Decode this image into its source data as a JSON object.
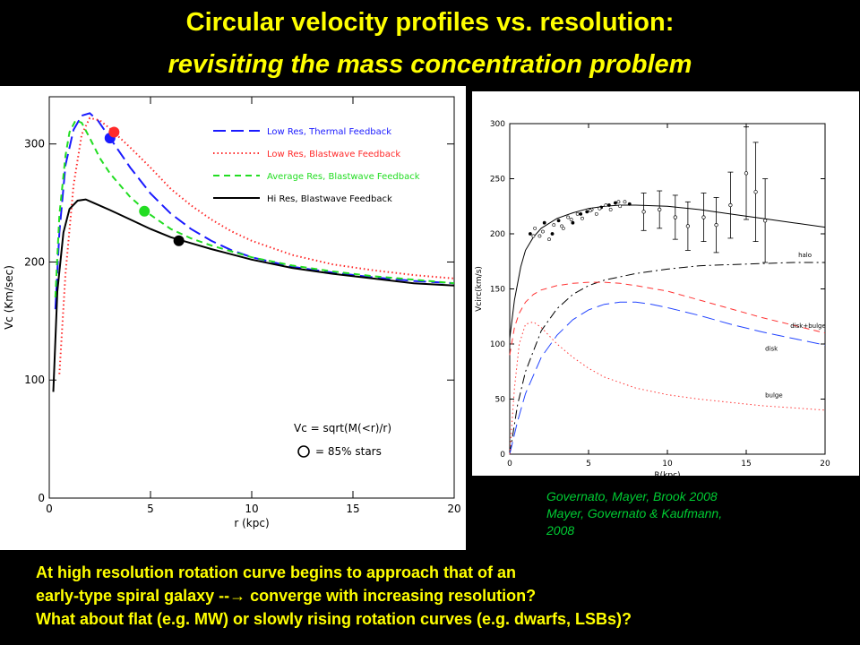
{
  "slide": {
    "title_line1": "Circular velocity profiles vs. resolution:",
    "title_line2": "revisiting the mass concentration problem",
    "citation": [
      "Governato, Mayer, Brook 2008",
      "Mayer, Governato & Kaufmann,",
      "2008"
    ],
    "bottom_lines": [
      "At high resolution rotation curve begins to approach  that of an",
      "early-type spiral galaxy --→ converge with increasing  resolution?",
      "What about flat (e.g. MW) or slowly rising rotation curves (e.g. dwarfs, LSBs)?"
    ]
  },
  "chart_data": [
    {
      "type": "line",
      "xlabel": "r (kpc)",
      "ylabel": "Vc (Km/sec)",
      "xlim": [
        0,
        20
      ],
      "ylim": [
        0,
        340
      ],
      "xticks": [
        0,
        5,
        10,
        15,
        20
      ],
      "yticks": [
        0,
        100,
        200,
        300
      ],
      "legend_position": "top-right",
      "annotation_lines": [
        "Vc = sqrt(M(<r)/r)",
        "= 85% stars"
      ],
      "series": [
        {
          "name": "Low Res, Thermal Feedback",
          "color": "#1a1aff",
          "dash": "long-dash",
          "x": [
            0.3,
            0.5,
            0.8,
            1.2,
            1.6,
            2.0,
            2.4,
            3,
            4,
            5,
            6,
            7,
            8,
            9,
            10,
            12,
            14,
            16,
            18,
            20
          ],
          "y": [
            160,
            225,
            282,
            312,
            324,
            326,
            320,
            305,
            280,
            258,
            241,
            228,
            218,
            210,
            204,
            196,
            191,
            187,
            184,
            182
          ],
          "marker": {
            "x": 3.0,
            "y": 305
          }
        },
        {
          "name": "Low Res, Blastwave Feedback",
          "color": "#ff2a2a",
          "dash": "dotted",
          "x": [
            0.5,
            0.8,
            1.2,
            1.6,
            2.0,
            2.5,
            3,
            4,
            5,
            6,
            7,
            8,
            9,
            10,
            12,
            14,
            16,
            18,
            20
          ],
          "y": [
            105,
            190,
            265,
            308,
            322,
            320,
            313,
            297,
            280,
            262,
            248,
            236,
            226,
            218,
            206,
            198,
            193,
            189,
            186
          ],
          "marker": {
            "x": 3.2,
            "y": 310
          }
        },
        {
          "name": "Average Res, Blastwave Feedback",
          "color": "#22dd22",
          "dash": "dashed",
          "x": [
            0.3,
            0.5,
            0.8,
            1.0,
            1.3,
            1.6,
            2.0,
            2.5,
            3,
            4,
            5,
            6,
            7,
            8,
            10,
            12,
            14,
            16,
            18,
            20
          ],
          "y": [
            170,
            240,
            290,
            310,
            320,
            318,
            305,
            288,
            275,
            255,
            240,
            228,
            220,
            214,
            204,
            197,
            192,
            188,
            185,
            182
          ],
          "marker": {
            "x": 4.7,
            "y": 243
          }
        },
        {
          "name": "Hi Res, Blastwave Feedback",
          "color": "#000000",
          "dash": "solid",
          "x": [
            0.2,
            0.4,
            0.7,
            1.0,
            1.4,
            1.8,
            2.2,
            3,
            4,
            5,
            6,
            7,
            8,
            10,
            12,
            14,
            16,
            18,
            20
          ],
          "y": [
            90,
            175,
            225,
            245,
            252,
            253,
            250,
            244,
            236,
            228,
            221,
            216,
            211,
            202,
            195,
            190,
            186,
            182,
            180
          ],
          "marker": {
            "x": 6.4,
            "y": 218
          }
        }
      ]
    },
    {
      "type": "line",
      "xlabel": "R(kpc)",
      "ylabel": "Vcirc(km/s)",
      "xlim": [
        0,
        20
      ],
      "ylim": [
        0,
        300
      ],
      "xticks": [
        0,
        5,
        10,
        15,
        20
      ],
      "yticks": [
        0,
        50,
        100,
        150,
        200,
        250,
        300
      ],
      "labels": [
        "halo",
        "disk+bulge",
        "disk",
        "bulge"
      ],
      "series": [
        {
          "name": "total",
          "color": "#000000",
          "dash": "solid",
          "x": [
            0,
            0.3,
            0.7,
            1,
            1.5,
            2,
            3,
            4,
            5,
            6,
            7,
            8,
            10,
            12,
            14,
            16,
            18,
            20
          ],
          "y": [
            105,
            140,
            170,
            185,
            197,
            205,
            214,
            219,
            223,
            225,
            226,
            226,
            225,
            222,
            218,
            214,
            210,
            206
          ]
        },
        {
          "name": "halo",
          "color": "#000000",
          "dash": "dashdot",
          "x": [
            0,
            0.5,
            1,
            2,
            3,
            4,
            5,
            6,
            8,
            10,
            12,
            14,
            16,
            18,
            20
          ],
          "y": [
            0,
            45,
            75,
            112,
            132,
            145,
            153,
            158,
            164,
            168,
            171,
            172,
            173,
            174,
            174
          ]
        },
        {
          "name": "disk+bulge",
          "color": "#ff3333",
          "dash": "dashed",
          "x": [
            0,
            0.3,
            0.6,
            1,
            1.5,
            2,
            3,
            4,
            5,
            6,
            7,
            8,
            10,
            12,
            14,
            16,
            18,
            20
          ],
          "y": [
            90,
            115,
            128,
            138,
            145,
            149,
            153,
            155,
            156,
            156,
            155,
            153,
            148,
            140,
            132,
            124,
            117,
            110
          ]
        },
        {
          "name": "disk",
          "color": "#2244ff",
          "dash": "long-dash",
          "x": [
            0,
            0.5,
            1,
            2,
            3,
            4,
            5,
            6,
            7,
            8,
            9,
            10,
            12,
            14,
            16,
            18,
            20
          ],
          "y": [
            0,
            30,
            55,
            88,
            108,
            122,
            131,
            136,
            138,
            138,
            136,
            133,
            126,
            118,
            111,
            105,
            99
          ]
        },
        {
          "name": "bulge",
          "color": "#ff3333",
          "dash": "dotted",
          "x": [
            0,
            0.3,
            0.6,
            1,
            1.5,
            2,
            3,
            4,
            5,
            6,
            8,
            10,
            12,
            14,
            16,
            18,
            20
          ],
          "y": [
            0,
            60,
            100,
            118,
            120,
            115,
            100,
            88,
            78,
            70,
            60,
            54,
            50,
            47,
            44,
            42,
            40
          ]
        }
      ],
      "observed_points": {
        "x": [
          1.3,
          1.6,
          1.9,
          2.2,
          2.5,
          2.8,
          3.1,
          3.4,
          3.7,
          4.0,
          4.3,
          4.6,
          4.9,
          5.2,
          5.5,
          5.8,
          6.1,
          6.4,
          6.7,
          7.0,
          7.3,
          7.6,
          1.5,
          2.1,
          2.7,
          3.3,
          3.9,
          4.5,
          5.1,
          5.7,
          6.3,
          6.9
        ],
        "y": [
          200,
          205,
          198,
          210,
          195,
          208,
          212,
          205,
          215,
          210,
          218,
          214,
          220,
          222,
          218,
          224,
          226,
          222,
          228,
          225,
          229,
          227,
          198,
          202,
          200,
          207,
          213,
          218,
          221,
          223,
          226,
          229
        ]
      },
      "errorbars": [
        {
          "x": 8.5,
          "y": 220,
          "err": 17
        },
        {
          "x": 9.5,
          "y": 222,
          "err": 17
        },
        {
          "x": 10.5,
          "y": 215,
          "err": 20
        },
        {
          "x": 11.3,
          "y": 207,
          "err": 22
        },
        {
          "x": 12.3,
          "y": 215,
          "err": 22
        },
        {
          "x": 13.1,
          "y": 208,
          "err": 25
        },
        {
          "x": 14.0,
          "y": 226,
          "err": 30
        },
        {
          "x": 15.0,
          "y": 255,
          "err": 42
        },
        {
          "x": 15.6,
          "y": 238,
          "err": 45
        },
        {
          "x": 16.2,
          "y": 212,
          "err": 38
        }
      ]
    }
  ]
}
